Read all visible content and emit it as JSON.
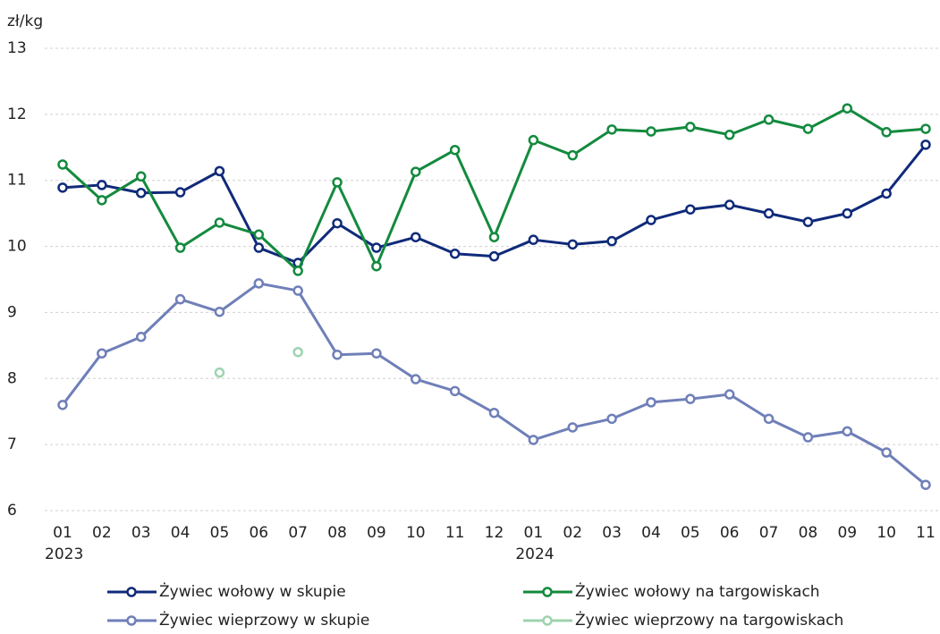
{
  "chart_data": {
    "type": "line",
    "y_unit": "zł/kg",
    "categories": [
      "01",
      "02",
      "03",
      "04",
      "05",
      "06",
      "07",
      "08",
      "09",
      "10",
      "11",
      "12",
      "01",
      "02",
      "03",
      "04",
      "05",
      "06",
      "07",
      "08",
      "09",
      "10",
      "11"
    ],
    "years": [
      "2023",
      null,
      null,
      null,
      null,
      null,
      null,
      null,
      null,
      null,
      null,
      null,
      "2024",
      null,
      null,
      null,
      null,
      null,
      null,
      null,
      null,
      null,
      null
    ],
    "ylim": [
      6,
      13
    ],
    "yticks": [
      6,
      7,
      8,
      9,
      10,
      11,
      12,
      13
    ],
    "grid": true,
    "series": [
      {
        "name": "Żywiec wołowy w skupie",
        "color": "#102a7a",
        "values": [
          10.89,
          10.93,
          10.81,
          10.82,
          11.14,
          9.98,
          9.75,
          10.35,
          9.98,
          10.14,
          9.89,
          9.85,
          10.1,
          10.03,
          10.08,
          10.4,
          10.56,
          10.63,
          10.5,
          10.37,
          10.5,
          10.8,
          11.54
        ]
      },
      {
        "name": "Żywiec wołowy na targowiskach",
        "color": "#138a3e",
        "values": [
          11.24,
          10.7,
          11.06,
          9.98,
          10.36,
          10.18,
          9.63,
          10.97,
          9.7,
          11.13,
          11.46,
          10.14,
          11.61,
          11.38,
          11.77,
          11.74,
          11.81,
          11.69,
          11.92,
          11.78,
          12.09,
          11.73,
          11.78
        ]
      },
      {
        "name": "Żywiec wieprzowy w skupie",
        "color": "#6f7fb8",
        "values": [
          7.6,
          8.38,
          8.63,
          9.2,
          9.01,
          9.44,
          9.33,
          8.36,
          8.38,
          7.99,
          7.81,
          7.48,
          7.07,
          7.26,
          7.39,
          7.64,
          7.69,
          7.76,
          7.39,
          7.11,
          7.2,
          6.88,
          6.39
        ]
      },
      {
        "name": "Żywiec wieprzowy na targowiskach",
        "color": "#9fd3b0",
        "values": [
          null,
          null,
          null,
          null,
          8.09,
          null,
          8.4,
          null,
          null,
          null,
          null,
          null,
          null,
          null,
          null,
          null,
          null,
          null,
          null,
          null,
          null,
          null,
          null
        ]
      }
    ]
  }
}
